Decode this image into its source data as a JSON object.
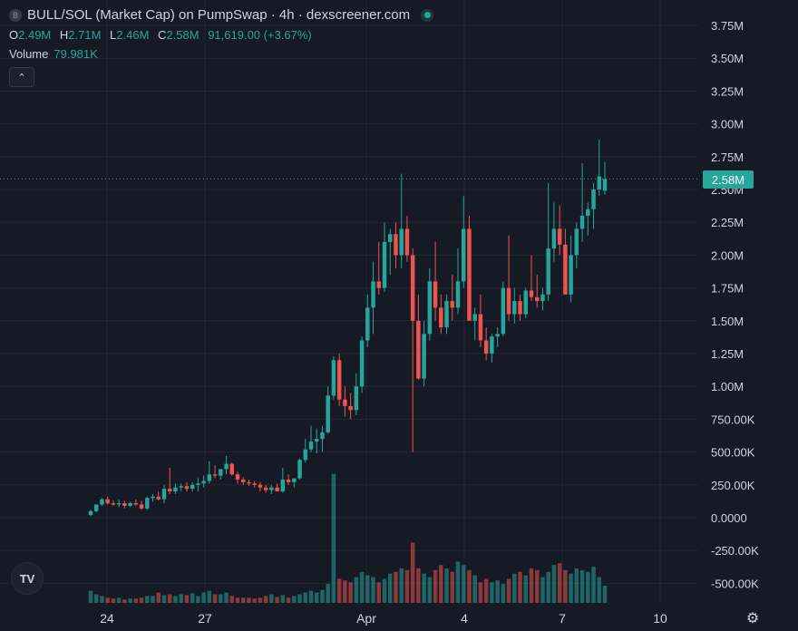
{
  "header": {
    "symbol_badge": "B",
    "title": "BULL/SOL (Market Cap) on PumpSwap · 4h · dexscreener.com"
  },
  "ohlc": {
    "o_label": "O",
    "o_value": "2.49M",
    "h_label": "H",
    "h_value": "2.71M",
    "l_label": "L",
    "l_value": "2.46M",
    "c_label": "C",
    "c_value": "2.58M",
    "change": "91,619.00 (+3.67%)"
  },
  "volume": {
    "label": "Volume",
    "value": "79.981K"
  },
  "current_price_label": "2.58M",
  "colors": {
    "background": "#161a25",
    "up": "#26a69a",
    "down": "#ef5350",
    "grid": "#232632",
    "text": "#d1d4dc"
  },
  "icons": {
    "collapse": "chevron-up-icon",
    "logo": "tradingview-logo-icon",
    "settings": "gear-icon"
  },
  "chart_data": {
    "type": "candlestick",
    "y_axis_labels": [
      "3.75M",
      "3.50M",
      "3.25M",
      "3.00M",
      "2.75M",
      "2.50M",
      "2.25M",
      "2.00M",
      "1.75M",
      "1.50M",
      "1.25M",
      "1.00M",
      "750.00K",
      "500.00K",
      "250.00K",
      "0.0000",
      "-250.00K",
      "-500.00K"
    ],
    "x_axis_labels": [
      "24",
      "27",
      "Apr",
      "4",
      "7",
      "10"
    ],
    "ylim": [
      -650000,
      3900000
    ],
    "last_close": 2580000,
    "candles": [
      {
        "o": 20000,
        "h": 60000,
        "l": 10000,
        "c": 50000
      },
      {
        "o": 50000,
        "h": 100000,
        "l": 40000,
        "c": 100000
      },
      {
        "o": 100000,
        "h": 150000,
        "l": 90000,
        "c": 140000
      },
      {
        "o": 140000,
        "h": 160000,
        "l": 100000,
        "c": 110000
      },
      {
        "o": 110000,
        "h": 130000,
        "l": 90000,
        "c": 100000
      },
      {
        "o": 100000,
        "h": 140000,
        "l": 80000,
        "c": 110000
      },
      {
        "o": 110000,
        "h": 130000,
        "l": 70000,
        "c": 90000
      },
      {
        "o": 90000,
        "h": 120000,
        "l": 80000,
        "c": 110000
      },
      {
        "o": 110000,
        "h": 140000,
        "l": 90000,
        "c": 100000
      },
      {
        "o": 100000,
        "h": 130000,
        "l": 60000,
        "c": 70000
      },
      {
        "o": 70000,
        "h": 160000,
        "l": 60000,
        "c": 150000
      },
      {
        "o": 150000,
        "h": 180000,
        "l": 120000,
        "c": 160000
      },
      {
        "o": 160000,
        "h": 200000,
        "l": 130000,
        "c": 140000
      },
      {
        "o": 140000,
        "h": 250000,
        "l": 110000,
        "c": 220000
      },
      {
        "o": 220000,
        "h": 380000,
        "l": 180000,
        "c": 200000
      },
      {
        "o": 200000,
        "h": 260000,
        "l": 180000,
        "c": 230000
      },
      {
        "o": 230000,
        "h": 260000,
        "l": 200000,
        "c": 240000
      },
      {
        "o": 240000,
        "h": 270000,
        "l": 200000,
        "c": 220000
      },
      {
        "o": 220000,
        "h": 270000,
        "l": 200000,
        "c": 250000
      },
      {
        "o": 250000,
        "h": 300000,
        "l": 200000,
        "c": 260000
      },
      {
        "o": 260000,
        "h": 320000,
        "l": 230000,
        "c": 280000
      },
      {
        "o": 280000,
        "h": 430000,
        "l": 260000,
        "c": 330000
      },
      {
        "o": 330000,
        "h": 400000,
        "l": 300000,
        "c": 320000
      },
      {
        "o": 320000,
        "h": 370000,
        "l": 290000,
        "c": 370000
      },
      {
        "o": 370000,
        "h": 470000,
        "l": 330000,
        "c": 410000
      },
      {
        "o": 410000,
        "h": 420000,
        "l": 320000,
        "c": 330000
      },
      {
        "o": 330000,
        "h": 350000,
        "l": 260000,
        "c": 290000
      },
      {
        "o": 290000,
        "h": 310000,
        "l": 250000,
        "c": 270000
      },
      {
        "o": 270000,
        "h": 290000,
        "l": 240000,
        "c": 260000
      },
      {
        "o": 260000,
        "h": 280000,
        "l": 230000,
        "c": 250000
      },
      {
        "o": 250000,
        "h": 270000,
        "l": 200000,
        "c": 230000
      },
      {
        "o": 230000,
        "h": 250000,
        "l": 190000,
        "c": 210000
      },
      {
        "o": 210000,
        "h": 250000,
        "l": 180000,
        "c": 230000
      },
      {
        "o": 230000,
        "h": 260000,
        "l": 200000,
        "c": 200000
      },
      {
        "o": 200000,
        "h": 380000,
        "l": 190000,
        "c": 290000
      },
      {
        "o": 290000,
        "h": 330000,
        "l": 250000,
        "c": 270000
      },
      {
        "o": 270000,
        "h": 300000,
        "l": 230000,
        "c": 300000
      },
      {
        "o": 300000,
        "h": 450000,
        "l": 290000,
        "c": 440000
      },
      {
        "o": 440000,
        "h": 600000,
        "l": 420000,
        "c": 520000
      },
      {
        "o": 520000,
        "h": 700000,
        "l": 500000,
        "c": 580000
      },
      {
        "o": 580000,
        "h": 680000,
        "l": 490000,
        "c": 600000
      },
      {
        "o": 600000,
        "h": 700000,
        "l": 500000,
        "c": 650000
      },
      {
        "o": 650000,
        "h": 1000000,
        "l": 640000,
        "c": 930000
      },
      {
        "o": 930000,
        "h": 1230000,
        "l": 900000,
        "c": 1200000
      },
      {
        "o": 1200000,
        "h": 1250000,
        "l": 850000,
        "c": 900000
      },
      {
        "o": 900000,
        "h": 1000000,
        "l": 770000,
        "c": 850000
      },
      {
        "o": 850000,
        "h": 950000,
        "l": 750000,
        "c": 820000
      },
      {
        "o": 820000,
        "h": 1100000,
        "l": 780000,
        "c": 1000000
      },
      {
        "o": 1000000,
        "h": 1380000,
        "l": 950000,
        "c": 1350000
      },
      {
        "o": 1350000,
        "h": 1700000,
        "l": 1300000,
        "c": 1600000
      },
      {
        "o": 1600000,
        "h": 1950000,
        "l": 1400000,
        "c": 1800000
      },
      {
        "o": 1800000,
        "h": 2100000,
        "l": 1700000,
        "c": 1750000
      },
      {
        "o": 1750000,
        "h": 2250000,
        "l": 1720000,
        "c": 2100000
      },
      {
        "o": 2100000,
        "h": 2200000,
        "l": 1850000,
        "c": 2160000
      },
      {
        "o": 2160000,
        "h": 2250000,
        "l": 1900000,
        "c": 2000000
      },
      {
        "o": 2000000,
        "h": 2620000,
        "l": 1900000,
        "c": 2200000
      },
      {
        "o": 2200000,
        "h": 2300000,
        "l": 1950000,
        "c": 2000000
      },
      {
        "o": 2000000,
        "h": 2050000,
        "l": 500000,
        "c": 1500000
      },
      {
        "o": 1500000,
        "h": 1700000,
        "l": 1050000,
        "c": 1060000
      },
      {
        "o": 1060000,
        "h": 1500000,
        "l": 1000000,
        "c": 1400000
      },
      {
        "o": 1400000,
        "h": 1900000,
        "l": 1350000,
        "c": 1800000
      },
      {
        "o": 1800000,
        "h": 2100000,
        "l": 1500000,
        "c": 1600000
      },
      {
        "o": 1600000,
        "h": 1700000,
        "l": 1400000,
        "c": 1450000
      },
      {
        "o": 1450000,
        "h": 1700000,
        "l": 1400000,
        "c": 1650000
      },
      {
        "o": 1650000,
        "h": 1850000,
        "l": 1500000,
        "c": 1600000
      },
      {
        "o": 1600000,
        "h": 2050000,
        "l": 1550000,
        "c": 1800000
      },
      {
        "o": 1800000,
        "h": 2450000,
        "l": 1750000,
        "c": 2200000
      },
      {
        "o": 2200000,
        "h": 2300000,
        "l": 1500000,
        "c": 1500000
      },
      {
        "o": 1500000,
        "h": 1600000,
        "l": 1350000,
        "c": 1550000
      },
      {
        "o": 1550000,
        "h": 1700000,
        "l": 1300000,
        "c": 1350000
      },
      {
        "o": 1350000,
        "h": 1450000,
        "l": 1200000,
        "c": 1250000
      },
      {
        "o": 1250000,
        "h": 1400000,
        "l": 1180000,
        "c": 1380000
      },
      {
        "o": 1380000,
        "h": 1450000,
        "l": 1300000,
        "c": 1400000
      },
      {
        "o": 1400000,
        "h": 1800000,
        "l": 1380000,
        "c": 1750000
      },
      {
        "o": 1750000,
        "h": 2150000,
        "l": 1500000,
        "c": 1550000
      },
      {
        "o": 1550000,
        "h": 1750000,
        "l": 1480000,
        "c": 1650000
      },
      {
        "o": 1650000,
        "h": 1700000,
        "l": 1500000,
        "c": 1550000
      },
      {
        "o": 1550000,
        "h": 1750000,
        "l": 1520000,
        "c": 1730000
      },
      {
        "o": 1730000,
        "h": 2000000,
        "l": 1650000,
        "c": 1680000
      },
      {
        "o": 1680000,
        "h": 1850000,
        "l": 1600000,
        "c": 1650000
      },
      {
        "o": 1650000,
        "h": 1750000,
        "l": 1580000,
        "c": 1700000
      },
      {
        "o": 1700000,
        "h": 2550000,
        "l": 1650000,
        "c": 2050000
      },
      {
        "o": 2050000,
        "h": 2400000,
        "l": 1950000,
        "c": 2200000
      },
      {
        "o": 2200000,
        "h": 2380000,
        "l": 2000000,
        "c": 2080000
      },
      {
        "o": 2080000,
        "h": 2200000,
        "l": 1700000,
        "c": 1700000
      },
      {
        "o": 1700000,
        "h": 2150000,
        "l": 1640000,
        "c": 2000000
      },
      {
        "o": 2000000,
        "h": 2250000,
        "l": 1900000,
        "c": 2200000
      },
      {
        "o": 2200000,
        "h": 2700000,
        "l": 2100000,
        "c": 2300000
      },
      {
        "o": 2300000,
        "h": 2400000,
        "l": 2150000,
        "c": 2350000
      },
      {
        "o": 2350000,
        "h": 2550000,
        "l": 2200000,
        "c": 2500000
      },
      {
        "o": 2500000,
        "h": 2880000,
        "l": 2450000,
        "c": 2600000
      },
      {
        "o": 2490000,
        "h": 2710000,
        "l": 2460000,
        "c": 2580000
      }
    ],
    "volumes": [
      14,
      10,
      8,
      6,
      5,
      6,
      4,
      5,
      5,
      6,
      8,
      8,
      12,
      9,
      10,
      8,
      10,
      9,
      11,
      8,
      12,
      14,
      10,
      10,
      12,
      8,
      6,
      6,
      6,
      5,
      6,
      8,
      10,
      7,
      9,
      6,
      8,
      10,
      12,
      14,
      12,
      15,
      22,
      150,
      28,
      26,
      24,
      30,
      36,
      32,
      30,
      24,
      28,
      34,
      36,
      40,
      38,
      70,
      40,
      34,
      30,
      38,
      44,
      40,
      36,
      48,
      44,
      38,
      32,
      24,
      28,
      24,
      26,
      22,
      28,
      34,
      36,
      32,
      40,
      38,
      30,
      36,
      44,
      46,
      38,
      34,
      40,
      38,
      36,
      42,
      30,
      20
    ]
  }
}
